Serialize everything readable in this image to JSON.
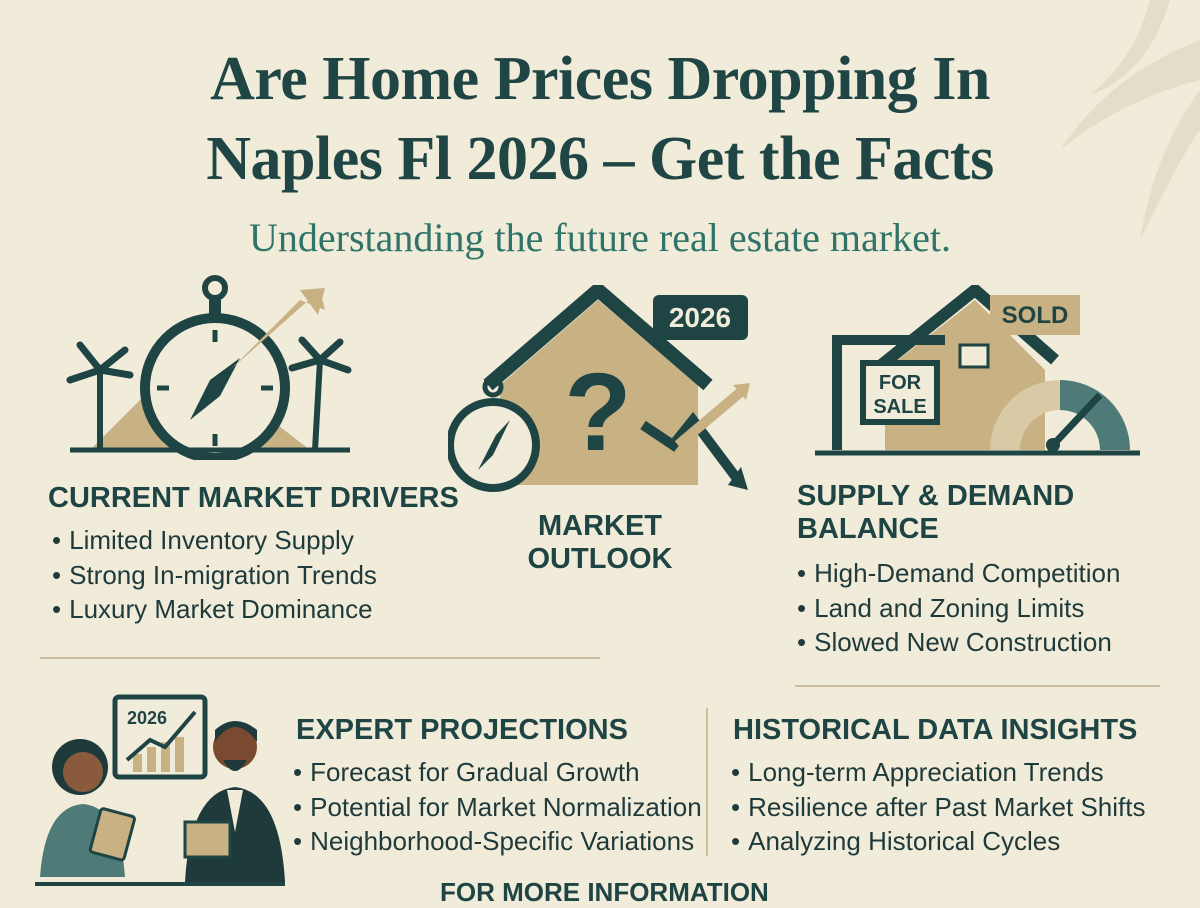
{
  "header": {
    "title_lines": [
      "Are Home Prices Dropping In",
      "Naples Fl 2026 – Get the Facts"
    ],
    "subtitle": "Understanding the future real estate market."
  },
  "icons": {
    "outlook_badge": "2026",
    "sold_sign": "SOLD",
    "for_sale_sign": [
      "FOR",
      "SALE"
    ],
    "chart_label": "2026"
  },
  "sections": {
    "current_market_drivers": {
      "title": "CURRENT MARKET DRIVERS",
      "items": [
        "Limited Inventory Supply",
        "Strong In-migration Trends",
        "Luxury Market Dominance"
      ]
    },
    "market_outlook": {
      "title_lines": [
        "MARKET",
        "OUTLOOK"
      ]
    },
    "supply_demand_balance": {
      "title_lines": [
        "SUPPLY & DEMAND",
        "BALANCE"
      ],
      "items": [
        "High-Demand Competition",
        "Land and Zoning Limits",
        "Slowed New Construction"
      ]
    },
    "expert_projections": {
      "title": "EXPERT PROJECTIONS",
      "items": [
        "Forecast for Gradual Growth",
        "Potential for Market Normalization",
        "Neighborhood-Specific Variations"
      ]
    },
    "historical_data_insights": {
      "title": "HISTORICAL DATA INSIGHTS",
      "items": [
        "Long-term Appreciation Trends",
        "Resilience after Past Market Shifts",
        "Analyzing Historical Cycles"
      ]
    }
  },
  "footer": {
    "text": "FOR MORE INFORMATION"
  }
}
